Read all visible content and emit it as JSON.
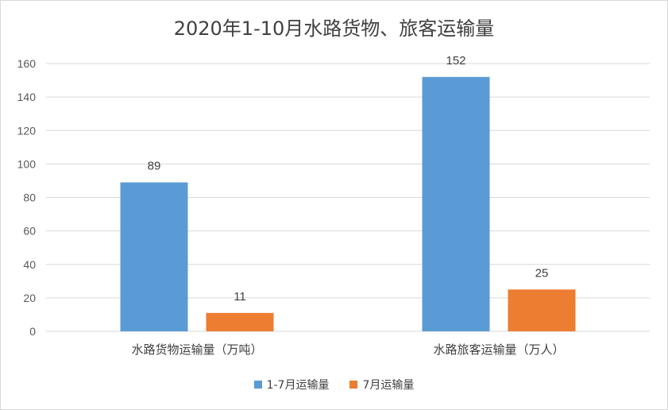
{
  "chart_data": {
    "type": "bar",
    "title": "2020年1-10月水路货物、旅客运输量",
    "categories": [
      "水路货物运输量（万吨）",
      "水路旅客运输量（万人）"
    ],
    "series": [
      {
        "name": "1-7月运输量",
        "values": [
          89,
          152
        ],
        "color": "#5b9bd5"
      },
      {
        "name": "7月运输量",
        "values": [
          11,
          25
        ],
        "color": "#ed7d31"
      }
    ],
    "ylim": [
      0,
      160
    ],
    "yticks": [
      0,
      20,
      40,
      60,
      80,
      100,
      120,
      140,
      160
    ],
    "grid": true,
    "legend": "bottom"
  }
}
